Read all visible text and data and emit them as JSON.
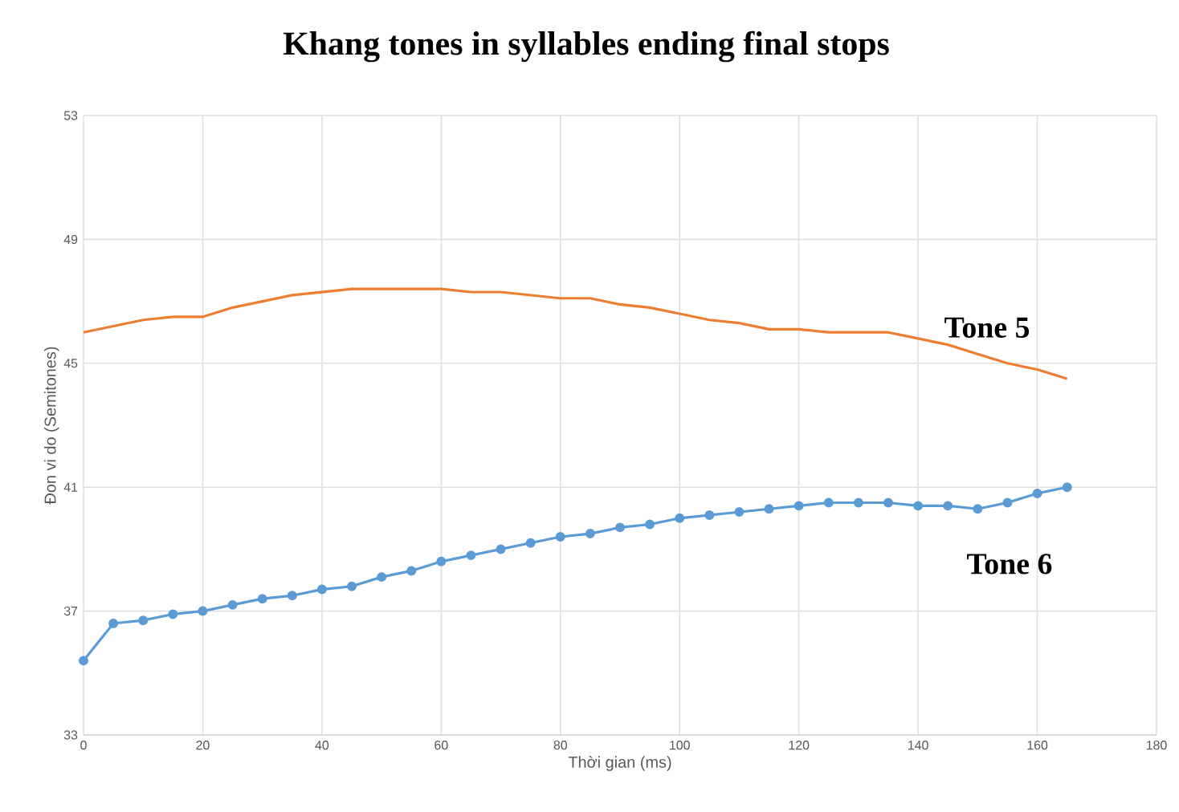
{
  "chart_data": {
    "type": "line",
    "title": "Khang tones in syllables ending final stops",
    "xlabel": "Thời gian (ms)",
    "ylabel": "Đon vi do (Semitones)",
    "x": [
      0,
      5,
      10,
      15,
      20,
      25,
      30,
      35,
      40,
      45,
      50,
      55,
      60,
      65,
      70,
      75,
      80,
      85,
      90,
      95,
      100,
      105,
      110,
      115,
      120,
      125,
      130,
      135,
      140,
      145,
      150,
      155,
      160,
      165
    ],
    "series": [
      {
        "name": "Tone 5",
        "color": "#ed7d31",
        "marker": "none",
        "values": [
          46.0,
          46.2,
          46.4,
          46.5,
          46.5,
          46.8,
          47.0,
          47.2,
          47.3,
          47.4,
          47.4,
          47.4,
          47.4,
          47.3,
          47.3,
          47.2,
          47.1,
          47.1,
          46.9,
          46.8,
          46.6,
          46.4,
          46.3,
          46.1,
          46.1,
          46.0,
          46.0,
          46.0,
          45.8,
          45.6,
          45.3,
          45.0,
          44.8,
          44.5
        ]
      },
      {
        "name": "Tone 6",
        "color": "#5b9bd5",
        "marker": "circle",
        "values": [
          35.4,
          36.6,
          36.7,
          36.9,
          37.0,
          37.2,
          37.4,
          37.5,
          37.7,
          37.8,
          38.1,
          38.3,
          38.6,
          38.8,
          39.0,
          39.2,
          39.4,
          39.5,
          39.7,
          39.8,
          40.0,
          40.1,
          40.2,
          40.3,
          40.4,
          40.5,
          40.5,
          40.5,
          40.4,
          40.4,
          40.3,
          40.5,
          40.8,
          41.0
        ]
      }
    ],
    "xlim": [
      0,
      180
    ],
    "xticks": [
      0,
      20,
      40,
      60,
      80,
      100,
      120,
      140,
      160,
      180
    ],
    "ylim": [
      33,
      53
    ],
    "yticks": [
      33,
      37,
      41,
      45,
      49,
      53
    ],
    "grid": true,
    "legend": false
  }
}
